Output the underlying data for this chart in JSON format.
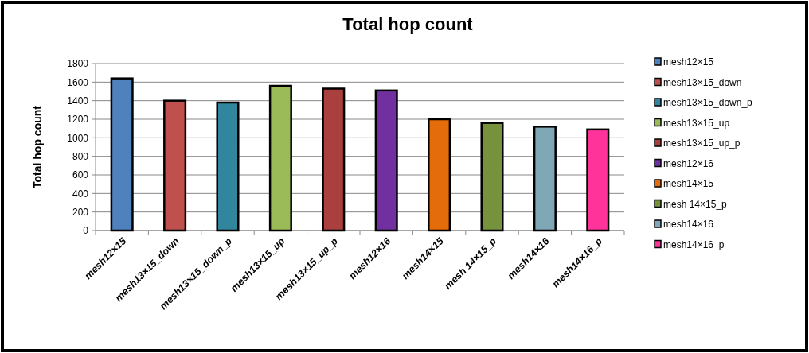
{
  "chart_data": {
    "type": "bar",
    "title": "Total hop count",
    "ylabel": "Total hop count",
    "categories": [
      "mesh12×15",
      "mesh13×15_down",
      "mesh13×15_down_p",
      "mesh13×15_up",
      "mesh13×15_up_p",
      "mesh12×16",
      "mesh14×15",
      "mesh 14×15_p",
      "mesh14×16",
      "mesh14×16_p"
    ],
    "series": [
      {
        "name": "mesh12×15",
        "color": "#4f81bd",
        "values": [
          1640,
          null,
          null,
          null,
          null,
          null,
          null,
          null,
          null,
          null
        ]
      },
      {
        "name": "mesh13×15_down",
        "color": "#c0504d",
        "values": [
          null,
          1400,
          null,
          null,
          null,
          null,
          null,
          null,
          null,
          null
        ]
      },
      {
        "name": "mesh13×15_down_p",
        "color": "#31859c",
        "values": [
          null,
          null,
          1380,
          null,
          null,
          null,
          null,
          null,
          null,
          null
        ]
      },
      {
        "name": "mesh13×15_up",
        "color": "#9bbb59",
        "values": [
          null,
          null,
          null,
          1560,
          null,
          null,
          null,
          null,
          null,
          null
        ]
      },
      {
        "name": "mesh13×15_up_p",
        "color": "#a9403d",
        "values": [
          null,
          null,
          null,
          null,
          1530,
          null,
          null,
          null,
          null,
          null
        ]
      },
      {
        "name": "mesh12×16",
        "color": "#7030a0",
        "values": [
          null,
          null,
          null,
          null,
          null,
          1510,
          null,
          null,
          null,
          null
        ]
      },
      {
        "name": "mesh14×15",
        "color": "#e46c0a",
        "values": [
          null,
          null,
          null,
          null,
          null,
          null,
          1200,
          null,
          null,
          null
        ]
      },
      {
        "name": "mesh 14×15_p",
        "color": "#76923c",
        "values": [
          null,
          null,
          null,
          null,
          null,
          null,
          null,
          1160,
          null,
          null
        ]
      },
      {
        "name": "mesh14×16",
        "color": "#7fa7b5",
        "values": [
          null,
          null,
          null,
          null,
          null,
          null,
          null,
          null,
          1120,
          null
        ]
      },
      {
        "name": "mesh14×16_p",
        "color": "#ff3399",
        "values": [
          null,
          null,
          null,
          null,
          null,
          null,
          null,
          null,
          null,
          1090
        ]
      }
    ],
    "ylim": [
      0,
      1800
    ],
    "yticks": [
      0,
      200,
      400,
      600,
      800,
      1000,
      1200,
      1400,
      1600,
      1800
    ],
    "grid": "y",
    "legend": "right"
  }
}
